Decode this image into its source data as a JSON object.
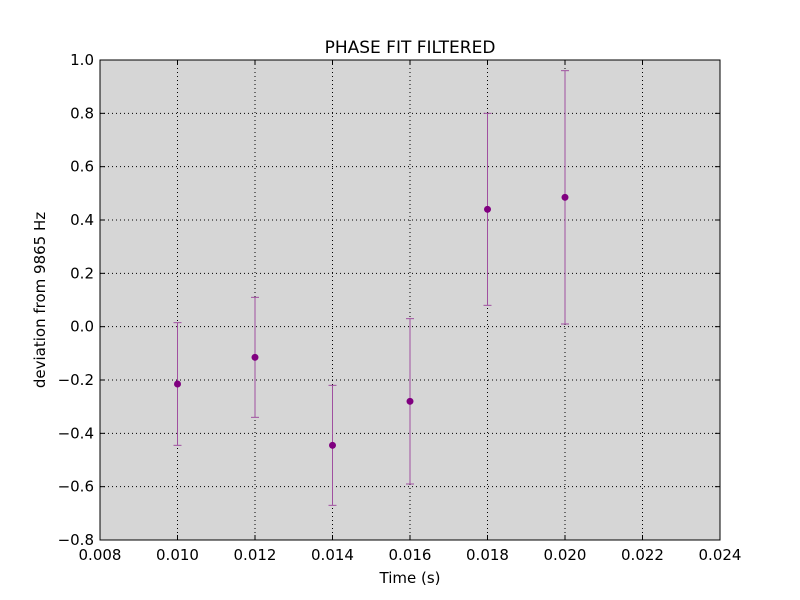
{
  "chart_data": {
    "type": "scatter",
    "title": "PHASE FIT FILTERED",
    "xlabel": "Time (s)",
    "ylabel": "deviation from 9865 Hz",
    "xlim": [
      0.008,
      0.024
    ],
    "ylim": [
      -0.8,
      1.0
    ],
    "grid": true,
    "x_ticks": [
      "0.008",
      "0.010",
      "0.012",
      "0.014",
      "0.016",
      "0.018",
      "0.020",
      "0.022",
      "0.024"
    ],
    "y_ticks": [
      "−0.8",
      "−0.6",
      "−0.4",
      "−0.2",
      "0.0",
      "0.2",
      "0.4",
      "0.6",
      "0.8",
      "1.0"
    ],
    "x_tick_values": [
      0.008,
      0.01,
      0.012,
      0.014,
      0.016,
      0.018,
      0.02,
      0.022,
      0.024
    ],
    "y_tick_values": [
      -0.8,
      -0.6,
      -0.4,
      -0.2,
      0.0,
      0.2,
      0.4,
      0.6,
      0.8,
      1.0
    ],
    "points": [
      {
        "x": 0.01,
        "y": -0.215,
        "err": 0.23
      },
      {
        "x": 0.012,
        "y": -0.115,
        "err": 0.225
      },
      {
        "x": 0.014,
        "y": -0.445,
        "err": 0.225
      },
      {
        "x": 0.016,
        "y": -0.28,
        "err": 0.31
      },
      {
        "x": 0.018,
        "y": 0.44,
        "err": 0.36
      },
      {
        "x": 0.02,
        "y": 0.485,
        "err": 0.475
      }
    ],
    "colors": {
      "marker": "#800080",
      "errorbar": "#a050a0",
      "plot_background": "#d6d6d6",
      "grid": "#000000"
    }
  }
}
